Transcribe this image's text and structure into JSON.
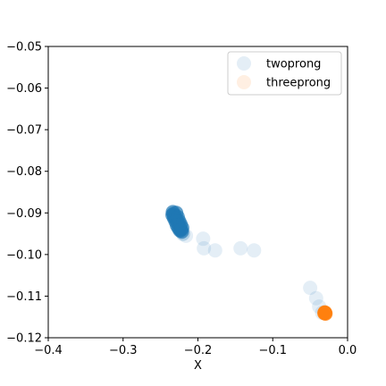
{
  "chart_data": {
    "type": "scatter",
    "title": "",
    "xlabel": "X",
    "ylabel": "",
    "xlim": [
      -0.4,
      0.0
    ],
    "ylim": [
      -0.12,
      -0.05
    ],
    "xticks": [
      -0.4,
      -0.3,
      -0.2,
      -0.1,
      0.0
    ],
    "xtick_labels": [
      "−0.4",
      "−0.3",
      "−0.2",
      "−0.1",
      "0.0"
    ],
    "yticks": [
      -0.12,
      -0.11,
      -0.1,
      -0.09,
      -0.08,
      -0.07,
      -0.06,
      -0.05
    ],
    "ytick_labels": [
      "−0.12",
      "−0.11",
      "−0.10",
      "−0.09",
      "−0.08",
      "−0.07",
      "−0.06",
      "−0.05"
    ],
    "grid": false,
    "legend_position": "top-right",
    "series": [
      {
        "name": "twoprong",
        "color": "#1f77b4",
        "legend_alpha": 0.12,
        "points": [
          {
            "x": -0.2335,
            "y": -0.0898,
            "alpha": 0.7
          },
          {
            "x": -0.2325,
            "y": -0.0902,
            "alpha": 0.7
          },
          {
            "x": -0.2315,
            "y": -0.0906,
            "alpha": 0.7
          },
          {
            "x": -0.2305,
            "y": -0.091,
            "alpha": 0.7
          },
          {
            "x": -0.2295,
            "y": -0.0914,
            "alpha": 0.7
          },
          {
            "x": -0.2285,
            "y": -0.0918,
            "alpha": 0.7
          },
          {
            "x": -0.2275,
            "y": -0.0922,
            "alpha": 0.7
          },
          {
            "x": -0.2265,
            "y": -0.0926,
            "alpha": 0.7
          },
          {
            "x": -0.2255,
            "y": -0.093,
            "alpha": 0.7
          },
          {
            "x": -0.2245,
            "y": -0.0934,
            "alpha": 0.7
          },
          {
            "x": -0.2235,
            "y": -0.0938,
            "alpha": 0.7
          },
          {
            "x": -0.2225,
            "y": -0.0941,
            "alpha": 0.7
          },
          {
            "x": -0.2215,
            "y": -0.0945,
            "alpha": 0.7
          },
          {
            "x": -0.232,
            "y": -0.0912,
            "alpha": 0.7
          },
          {
            "x": -0.23,
            "y": -0.092,
            "alpha": 0.7
          },
          {
            "x": -0.228,
            "y": -0.093,
            "alpha": 0.7
          },
          {
            "x": -0.226,
            "y": -0.0936,
            "alpha": 0.7
          },
          {
            "x": -0.224,
            "y": -0.0942,
            "alpha": 0.7
          },
          {
            "x": -0.234,
            "y": -0.0905,
            "alpha": 0.7
          },
          {
            "x": -0.229,
            "y": -0.09,
            "alpha": 0.7
          },
          {
            "x": -0.227,
            "y": -0.091,
            "alpha": 0.7
          },
          {
            "x": -0.225,
            "y": -0.092,
            "alpha": 0.7
          },
          {
            "x": -0.223,
            "y": -0.0928,
            "alpha": 0.7
          },
          {
            "x": -0.221,
            "y": -0.0936,
            "alpha": 0.7
          },
          {
            "x": -0.22,
            "y": -0.095,
            "alpha": 0.25
          },
          {
            "x": -0.216,
            "y": -0.0955,
            "alpha": 0.12
          },
          {
            "x": -0.193,
            "y": -0.0962,
            "alpha": 0.12
          },
          {
            "x": -0.192,
            "y": -0.0985,
            "alpha": 0.12
          },
          {
            "x": -0.177,
            "y": -0.099,
            "alpha": 0.12
          },
          {
            "x": -0.143,
            "y": -0.0985,
            "alpha": 0.12
          },
          {
            "x": -0.125,
            "y": -0.099,
            "alpha": 0.12
          },
          {
            "x": -0.05,
            "y": -0.108,
            "alpha": 0.12
          },
          {
            "x": -0.042,
            "y": -0.1105,
            "alpha": 0.12
          },
          {
            "x": -0.038,
            "y": -0.1125,
            "alpha": 0.12
          },
          {
            "x": -0.034,
            "y": -0.114,
            "alpha": 0.12
          }
        ]
      },
      {
        "name": "threeprong",
        "color": "#ff7f0e",
        "legend_alpha": 0.12,
        "points": [
          {
            "x": -0.031,
            "y": -0.1141,
            "alpha": 0.8
          },
          {
            "x": -0.03,
            "y": -0.114,
            "alpha": 0.8
          },
          {
            "x": -0.0295,
            "y": -0.1142,
            "alpha": 0.8
          },
          {
            "x": -0.0305,
            "y": -0.1139,
            "alpha": 0.8
          }
        ]
      }
    ]
  }
}
